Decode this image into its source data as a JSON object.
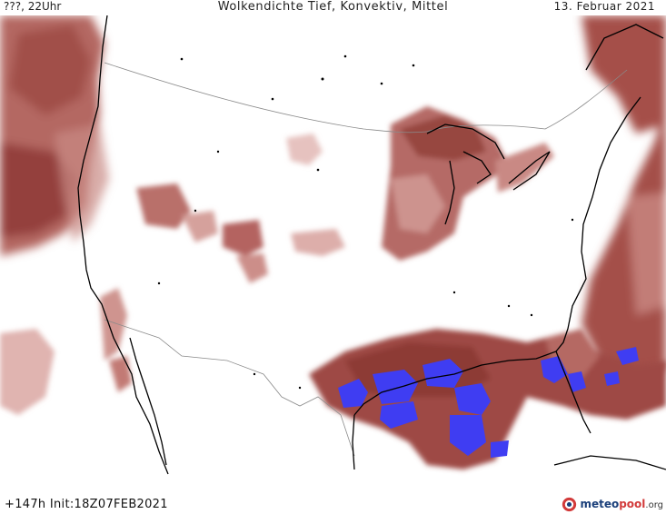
{
  "header": {
    "left": "???, 22Uhr",
    "title": "Wolkendichte   Tief, Konvektiv, Mittel",
    "date": "13. Februar 2021"
  },
  "footer": {
    "forecast": "+147h  Init:18Z07FEB2021"
  },
  "logo": {
    "brand_main": "meteo",
    "brand_accent": "pool",
    "brand_tld": ".org"
  },
  "colors": {
    "cloud_dark": "#8e3b36",
    "cloud_mid": "#b15f59",
    "cloud_light": "#d8a4a0",
    "convective": "#3f3df2",
    "coastline": "#000000",
    "border": "#8a8a8a"
  }
}
